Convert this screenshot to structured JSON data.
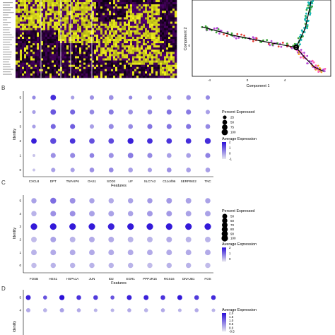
{
  "panel_letters": [
    "B",
    "C",
    "D"
  ],
  "chart_data": [
    {
      "type": "heatmap",
      "colors": {
        "low": "#5a007a",
        "mid": "#000000",
        "high": "#f2f21e"
      }
    },
    {
      "type": "scatter",
      "xlabel": "Component 1",
      "ylabel": "Component 2",
      "xticks": [
        "-4",
        "0",
        "4"
      ],
      "yticks": [
        "0"
      ],
      "branch_point": "1"
    },
    {
      "type": "dotplot",
      "xlabel": "Features",
      "ylabel": "Identity",
      "categories": [
        "CXCL8",
        "DPT",
        "TNFAIP6",
        "OAS1",
        "SOD2",
        "LIF",
        "SLC7A2",
        "C11orf96",
        "SERPINE2",
        "TNC"
      ],
      "identities": [
        "5",
        "4",
        "3",
        "2",
        "1",
        "0"
      ],
      "pct_legend": {
        "title": "Percent Expressed",
        "values": [
          "25",
          "50",
          "75",
          "100"
        ]
      },
      "avg_legend": {
        "title": "Average Expression",
        "ticks": [
          "2",
          "1",
          "0",
          "-1"
        ],
        "min": -1,
        "max": 2
      },
      "avg_expression": [
        [
          0.3,
          1.6,
          0.0,
          0.2,
          0.2,
          0.3,
          0.2,
          0.2,
          0.2,
          0.3
        ],
        [
          0.0,
          1.0,
          0.8,
          0.3,
          0.5,
          0.2,
          0.3,
          0.6,
          0.5,
          0.0
        ],
        [
          0.0,
          0.8,
          0.9,
          0.0,
          0.3,
          0.3,
          0.6,
          0.6,
          0.6,
          0.3
        ],
        [
          1.8,
          1.2,
          1.5,
          1.1,
          1.2,
          1.8,
          1.6,
          1.5,
          1.6,
          1.6
        ],
        [
          -0.5,
          0.2,
          0.3,
          0.4,
          0.2,
          0.5,
          0.3,
          0.0,
          0.0,
          0.4
        ],
        [
          -0.5,
          0.0,
          0.0,
          0.2,
          0.3,
          0.0,
          0.0,
          0.2,
          0.0,
          0.0
        ]
      ],
      "pct_expressed": [
        [
          25,
          75,
          25,
          40,
          50,
          25,
          40,
          40,
          50,
          40
        ],
        [
          25,
          75,
          60,
          50,
          60,
          50,
          50,
          60,
          60,
          40
        ],
        [
          25,
          60,
          60,
          40,
          60,
          50,
          60,
          60,
          60,
          50
        ],
        [
          75,
          90,
          75,
          75,
          75,
          90,
          75,
          75,
          75,
          90
        ],
        [
          10,
          60,
          60,
          50,
          60,
          75,
          60,
          50,
          50,
          60
        ],
        [
          10,
          40,
          40,
          50,
          50,
          50,
          40,
          50,
          50,
          50
        ]
      ]
    },
    {
      "type": "dotplot",
      "xlabel": "Features",
      "ylabel": "Identity",
      "categories": [
        "FOSB",
        "HES1",
        "HSPA1A",
        "JUN",
        "ID2",
        "EGR1",
        "PPP1R15",
        "RGS16",
        "DNAJB1",
        "FOS"
      ],
      "identities": [
        "5",
        "4",
        "3",
        "2",
        "1",
        "0"
      ],
      "pct_legend": {
        "title": "Percent Expressed",
        "values": [
          "50",
          "60",
          "70",
          "80",
          "90",
          "100"
        ]
      },
      "avg_legend": {
        "title": "Average Expression",
        "ticks": [
          "2",
          "1",
          "0"
        ],
        "min": -0.5,
        "max": 2
      },
      "avg_expression": [
        [
          0.3,
          0.9,
          0.5,
          0.3,
          0.2,
          0.3,
          0.4,
          0.4,
          0.3,
          0.3
        ],
        [
          0.1,
          0.5,
          0.5,
          0.3,
          0.3,
          0.3,
          0.4,
          0.4,
          0.3,
          0.3
        ],
        [
          1.9,
          1.9,
          1.9,
          1.9,
          1.8,
          1.9,
          1.9,
          1.9,
          1.9,
          1.9
        ],
        [
          0.0,
          0.3,
          0.1,
          0.2,
          0.2,
          0.1,
          0.1,
          0.2,
          0.1,
          0.1
        ],
        [
          0.1,
          0.2,
          0.2,
          0.2,
          0.2,
          0.2,
          0.2,
          0.2,
          0.2,
          0.2
        ],
        [
          0.0,
          0.1,
          0.1,
          0.1,
          0.1,
          0.1,
          0.0,
          0.1,
          0.1,
          0.0
        ]
      ],
      "pct_expressed": [
        [
          60,
          80,
          70,
          60,
          60,
          60,
          60,
          70,
          70,
          60
        ],
        [
          60,
          70,
          70,
          70,
          70,
          60,
          70,
          70,
          70,
          70
        ],
        [
          100,
          100,
          100,
          100,
          100,
          100,
          100,
          100,
          100,
          100
        ],
        [
          70,
          70,
          70,
          70,
          70,
          70,
          70,
          70,
          70,
          70
        ],
        [
          70,
          70,
          70,
          70,
          70,
          70,
          70,
          70,
          70,
          70
        ],
        [
          60,
          60,
          60,
          60,
          60,
          60,
          60,
          60,
          60,
          60
        ]
      ]
    },
    {
      "type": "dotplot",
      "ylabel": "Identity",
      "identities": [
        "5",
        "4"
      ],
      "avg_legend": {
        "title": "Average Expression",
        "ticks": [
          "2.0",
          "1.5",
          "1.0",
          "0.5",
          "0.0",
          "-0.5"
        ],
        "min": -0.5,
        "max": 2
      },
      "avg_expression": [
        [
          1.8,
          1.2,
          2.0,
          1.6,
          1.5,
          1.2,
          1.8,
          1.8,
          1.6,
          1.9,
          1.5,
          1.7
        ],
        [
          0.2,
          0.1,
          0.3,
          0.2,
          0.1,
          0.1,
          0.2,
          0.1,
          0.2,
          0.1,
          0.2,
          0.1
        ]
      ],
      "pct_expressed": [
        [
          70,
          40,
          80,
          60,
          60,
          40,
          70,
          70,
          60,
          70,
          60,
          60
        ],
        [
          50,
          40,
          50,
          40,
          30,
          30,
          40,
          40,
          40,
          30,
          40,
          30
        ]
      ]
    }
  ]
}
